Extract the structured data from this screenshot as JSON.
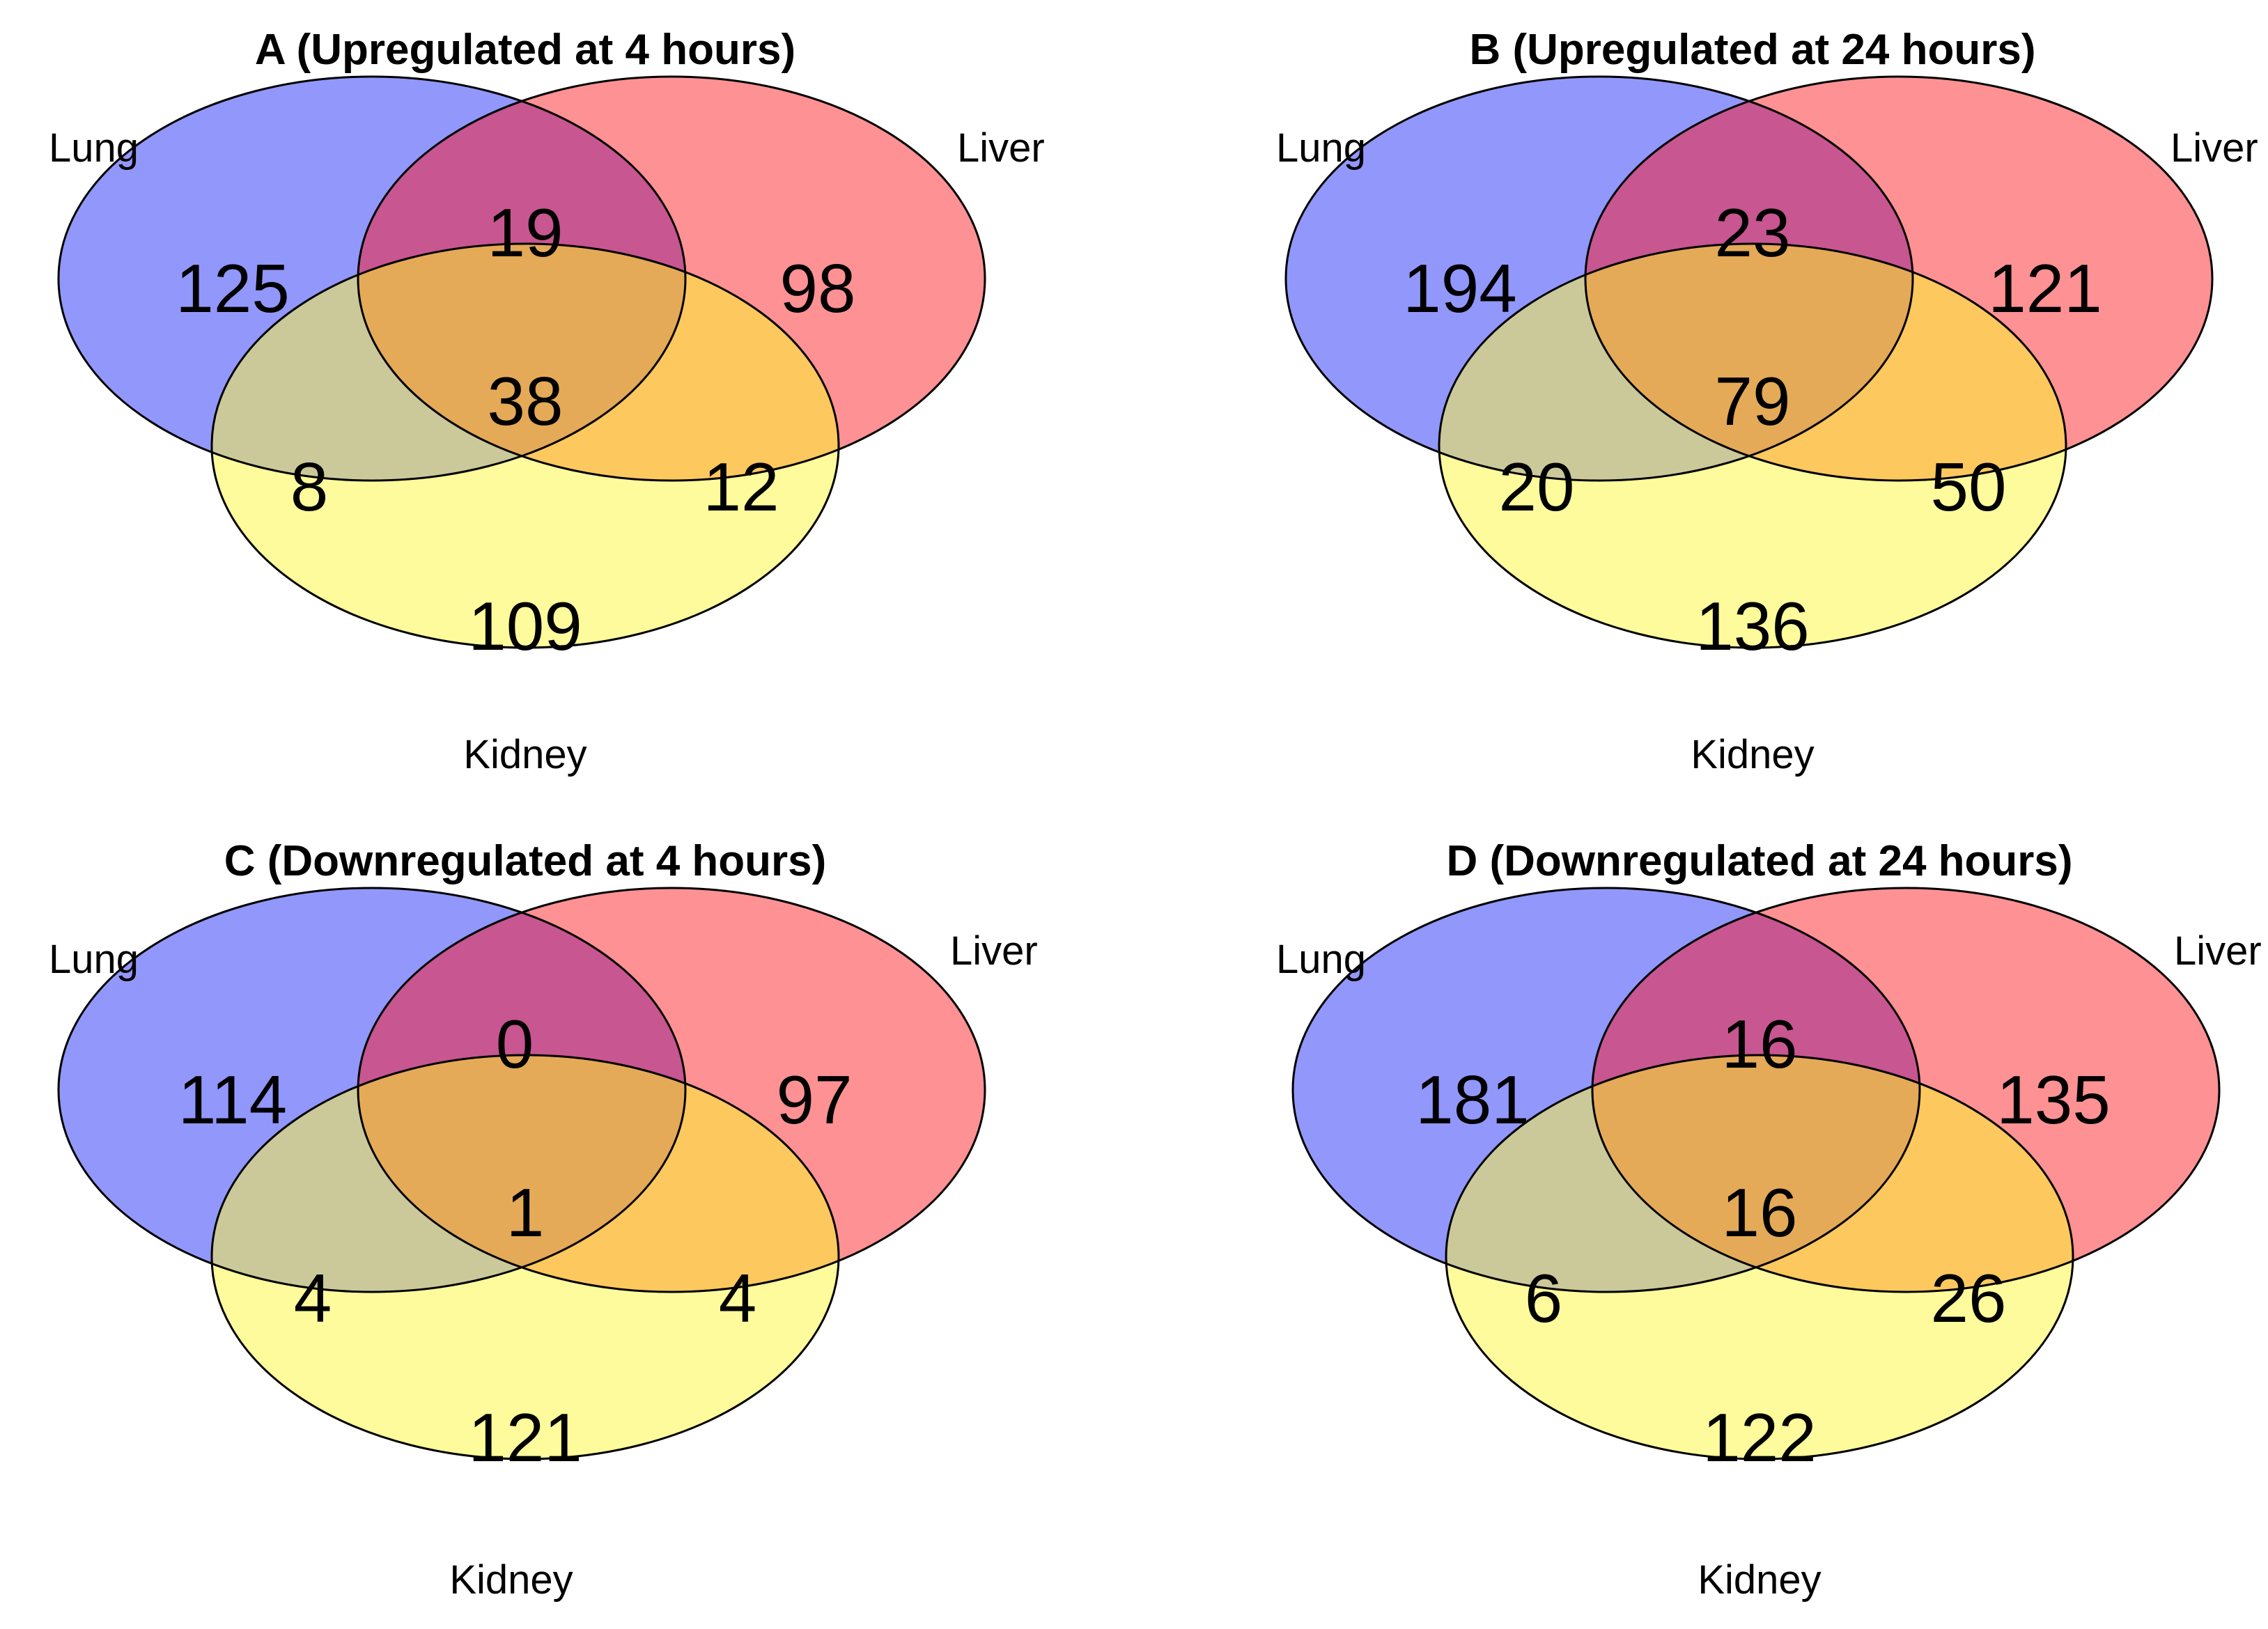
{
  "colors": {
    "lung": "#9297fb",
    "liver": "#fd9193",
    "kidney": "#fdfb9b",
    "lung_liver": "#c85690",
    "lung_kidney": "#cbc99a",
    "liver_kidney": "#fdc85e",
    "all_three": "#e4aa57",
    "outline": "#000000"
  },
  "set_labels": {
    "lung": "Lung",
    "liver": "Liver",
    "kidney": "Kidney"
  },
  "panels": [
    {
      "id": "A",
      "title": "A (Upregulated at 4 hours)",
      "counts": {
        "lung_only": "125",
        "liver_only": "98",
        "kidney_only": "109",
        "lung_liver": "19",
        "lung_kidney": "8",
        "liver_kidney": "12",
        "all_three": "38"
      }
    },
    {
      "id": "B",
      "title": "B (Upregulated at 24 hours)",
      "counts": {
        "lung_only": "194",
        "liver_only": "121",
        "kidney_only": "136",
        "lung_liver": "23",
        "lung_kidney": "20",
        "liver_kidney": "50",
        "all_three": "79"
      }
    },
    {
      "id": "C",
      "title": "C (Downregulated at 4 hours)",
      "counts": {
        "lung_only": "114",
        "liver_only": "97",
        "kidney_only": "121",
        "lung_liver": "0",
        "lung_kidney": "4",
        "liver_kidney": "4",
        "all_three": "1"
      }
    },
    {
      "id": "D",
      "title": "D (Downregulated at 24 hours)",
      "counts": {
        "lung_only": "181",
        "liver_only": "135",
        "kidney_only": "122",
        "lung_liver": "16",
        "lung_kidney": "6",
        "liver_kidney": "26",
        "all_three": "16"
      }
    }
  ]
}
